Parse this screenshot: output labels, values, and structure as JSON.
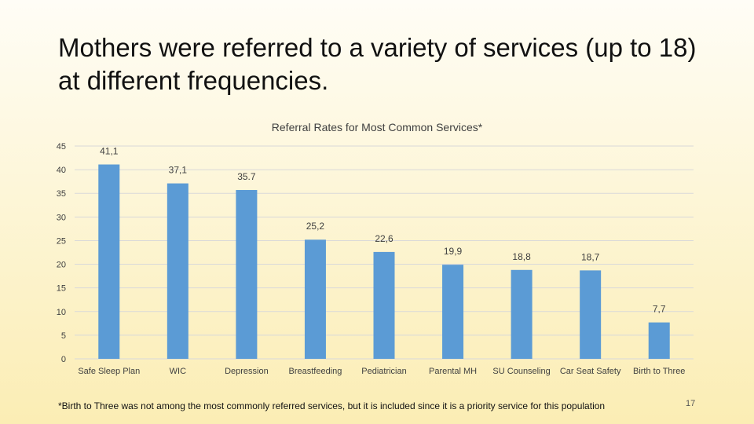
{
  "slide": {
    "title": "Mothers were referred to a variety of services (up to 18) at different frequencies.",
    "footnote": "*Birth to Three was not among the most commonly referred services, but it is included since it is a priority service for this population",
    "page_number": "17"
  },
  "colors": {
    "bar": "#5b9bd5",
    "grid": "#d9d9d9",
    "text": "#404040"
  },
  "chart_data": {
    "type": "bar",
    "title": "Referral Rates for Most Common Services*",
    "categories": [
      "Safe Sleep Plan",
      "WIC",
      "Depression",
      "Breastfeeding",
      "Pediatrician",
      "Parental MH",
      "SU Counseling",
      "Car Seat Safety",
      "Birth to Three"
    ],
    "values": [
      41.1,
      37.1,
      35.7,
      25.2,
      22.6,
      19.9,
      18.8,
      18.7,
      7.7
    ],
    "data_labels": [
      "41,1",
      "37,1",
      "35.7",
      "25,2",
      "22,6",
      "19,9",
      "18,8",
      "18,7",
      "7,7"
    ],
    "ylim": [
      0,
      45
    ],
    "yticks": [
      "0",
      "5",
      "10",
      "15",
      "20",
      "25",
      "30",
      "35",
      "40",
      "45"
    ],
    "xlabel": "",
    "ylabel": "",
    "grid": true,
    "legend": "none"
  }
}
